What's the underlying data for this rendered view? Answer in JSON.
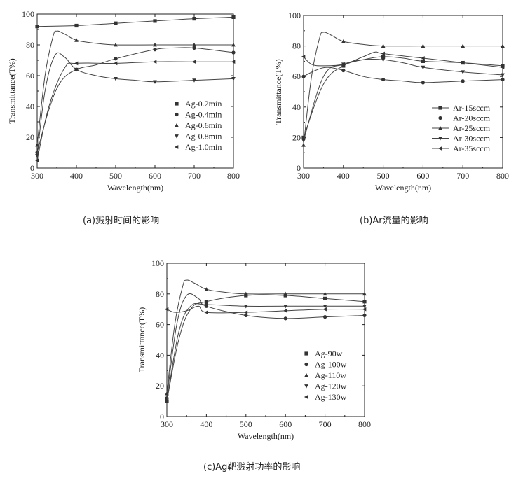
{
  "captions": {
    "a": "(a)溅射时间的影响",
    "b": "(b)Ar流量的影响",
    "c": "(c)Ag靶溅射功率的影响"
  },
  "colors": {
    "line": "#444444",
    "marker": "#333333",
    "frame": "#222222"
  },
  "chart_data": [
    {
      "id": "a",
      "type": "line",
      "xlabel": "Wavelength(nm)",
      "ylabel": "Transmittance(T%)",
      "xlim": [
        300,
        800
      ],
      "ylim": [
        0,
        100
      ],
      "xticks": [
        300,
        400,
        500,
        600,
        700,
        800
      ],
      "yticks": [
        0,
        20,
        40,
        60,
        80,
        100
      ],
      "legend_position": "right",
      "series": [
        {
          "name": "Ag-0.2min",
          "marker": "square",
          "x": [
            300,
            400,
            500,
            600,
            700,
            800
          ],
          "y": [
            92,
            92.5,
            94,
            95.5,
            97,
            98
          ]
        },
        {
          "name": "Ag-0.4min",
          "marker": "circle",
          "x": [
            300,
            330,
            360,
            400,
            450,
            500,
            600,
            650,
            700,
            800
          ],
          "y": [
            10,
            38,
            56,
            64,
            67,
            71,
            77,
            78,
            78,
            75
          ]
        },
        {
          "name": "Ag-0.6min",
          "marker": "triangle-up",
          "x": [
            300,
            320,
            340,
            350,
            370,
            400,
            450,
            500,
            600,
            700,
            800
          ],
          "y": [
            15,
            60,
            85,
            89,
            87,
            83,
            81,
            80,
            80,
            80,
            80
          ]
        },
        {
          "name": "Ag-0.8min",
          "marker": "triangle-down",
          "x": [
            300,
            320,
            345,
            370,
            400,
            450,
            500,
            550,
            600,
            700,
            800
          ],
          "y": [
            8,
            50,
            73,
            72,
            64,
            60,
            58,
            57,
            56,
            57,
            58
          ]
        },
        {
          "name": "Ag-1.0min",
          "marker": "triangle-left",
          "x": [
            300,
            330,
            370,
            400,
            500,
            600,
            700,
            800
          ],
          "y": [
            5,
            40,
            65,
            68,
            68,
            69,
            69,
            69
          ]
        }
      ]
    },
    {
      "id": "b",
      "type": "line",
      "xlabel": "Wavelength(nm)",
      "ylabel": "Transmittance(T%)",
      "xlim": [
        300,
        800
      ],
      "ylim": [
        0,
        100
      ],
      "xticks": [
        300,
        400,
        500,
        600,
        700,
        800
      ],
      "yticks": [
        0,
        20,
        40,
        60,
        80,
        100
      ],
      "legend_position": "bottom-right",
      "series": [
        {
          "name": "Ar-15sccm",
          "marker": "square",
          "x": [
            300,
            350,
            400,
            450,
            500,
            550,
            600,
            700,
            800
          ],
          "y": [
            20,
            55,
            67,
            71,
            73,
            72,
            70,
            69,
            67
          ]
        },
        {
          "name": "Ar-20sccm",
          "marker": "circle",
          "x": [
            300,
            330,
            360,
            400,
            450,
            500,
            550,
            600,
            700,
            800
          ],
          "y": [
            60,
            64,
            66,
            64,
            60,
            58,
            57,
            56,
            57,
            58
          ]
        },
        {
          "name": "Ar-25sccm",
          "marker": "triangle-up",
          "x": [
            300,
            320,
            340,
            350,
            370,
            400,
            450,
            500,
            600,
            700,
            800
          ],
          "y": [
            15,
            60,
            85,
            89,
            87,
            83,
            81,
            80,
            80,
            80,
            80
          ]
        },
        {
          "name": "Ar-30sccm",
          "marker": "triangle-down",
          "x": [
            300,
            350,
            400,
            450,
            500,
            550,
            600,
            700,
            800
          ],
          "y": [
            18,
            60,
            68,
            71,
            71,
            69,
            66,
            63,
            61
          ]
        },
        {
          "name": "Ar-35sccm",
          "marker": "triangle-left",
          "x": [
            300,
            320,
            350,
            400,
            450,
            480,
            500,
            600,
            700,
            800
          ],
          "y": [
            73,
            68,
            67,
            68,
            73,
            76,
            75,
            72,
            69,
            66
          ]
        }
      ]
    },
    {
      "id": "c",
      "type": "line",
      "xlabel": "Wavelength(nm)",
      "ylabel": "Transmittance(T%)",
      "xlim": [
        300,
        800
      ],
      "ylim": [
        0,
        100
      ],
      "xticks": [
        300,
        400,
        500,
        600,
        700,
        800
      ],
      "yticks": [
        0,
        20,
        40,
        60,
        80,
        100
      ],
      "legend_position": "right",
      "series": [
        {
          "name": "Ag-90w",
          "marker": "square",
          "x": [
            300,
            330,
            360,
            400,
            500,
            600,
            700,
            800
          ],
          "y": [
            10,
            50,
            70,
            75,
            79,
            79,
            77,
            75
          ]
        },
        {
          "name": "Ag-100w",
          "marker": "circle",
          "x": [
            300,
            325,
            350,
            380,
            400,
            500,
            600,
            700,
            800
          ],
          "y": [
            12,
            60,
            79,
            77,
            72,
            66,
            64,
            65,
            66
          ]
        },
        {
          "name": "Ag-110w",
          "marker": "triangle-up",
          "x": [
            300,
            320,
            340,
            350,
            370,
            400,
            450,
            500,
            600,
            700,
            800
          ],
          "y": [
            15,
            60,
            85,
            89,
            87,
            83,
            81,
            80,
            80,
            80,
            80
          ]
        },
        {
          "name": "Ag-120w",
          "marker": "triangle-down",
          "x": [
            300,
            330,
            360,
            400,
            500,
            600,
            700,
            800
          ],
          "y": [
            10,
            55,
            72,
            73,
            72,
            72,
            72,
            72
          ]
        },
        {
          "name": "Ag-130w",
          "marker": "triangle-left",
          "x": [
            300,
            320,
            350,
            380,
            400,
            500,
            600,
            700,
            800
          ],
          "y": [
            70,
            68,
            69,
            72,
            68,
            68,
            69,
            70,
            70
          ]
        }
      ]
    }
  ]
}
